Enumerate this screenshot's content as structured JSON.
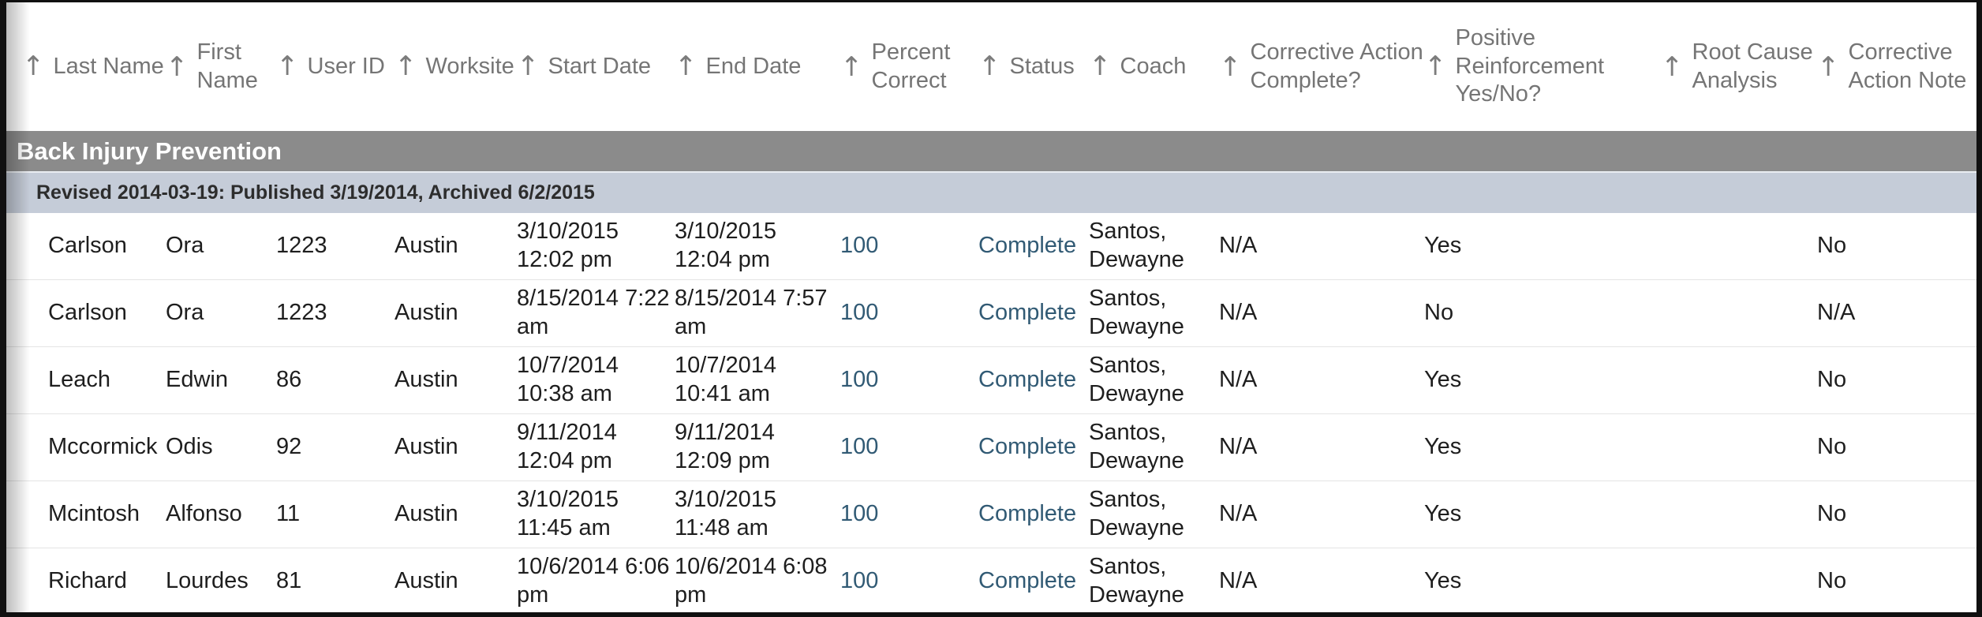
{
  "icons": {
    "sort_ascending": "↑"
  },
  "colors": {
    "group_band_bg": "#8b8b8b",
    "group_band_text": "#ffffff",
    "sub_band_bg": "#c5ccd8",
    "link_text": "#315a74",
    "header_text": "#757575",
    "body_text": "#1e1e1e"
  },
  "table": {
    "columns": [
      {
        "id": "last_name",
        "label": "Last Name"
      },
      {
        "id": "first_name",
        "label": "First\nName"
      },
      {
        "id": "user_id",
        "label": "User ID"
      },
      {
        "id": "worksite",
        "label": "Worksite"
      },
      {
        "id": "start_date",
        "label": "Start Date"
      },
      {
        "id": "end_date",
        "label": "End Date"
      },
      {
        "id": "percent_correct",
        "label": "Percent\nCorrect"
      },
      {
        "id": "status",
        "label": "Status"
      },
      {
        "id": "coach",
        "label": "Coach"
      },
      {
        "id": "corrective_action_complete",
        "label": "Corrective Action\nComplete?"
      },
      {
        "id": "positive_reinforcement",
        "label": "Positive\nReinforcement\nYes/No?"
      },
      {
        "id": "root_cause_analysis",
        "label": "Root Cause\nAnalysis"
      },
      {
        "id": "corrective_action_note",
        "label": "Corrective\nAction Note"
      }
    ],
    "link_columns": [
      "percent_correct",
      "status"
    ],
    "group": {
      "title": "Back Injury Prevention",
      "subtitle": "Revised 2014-03-19: Published 3/19/2014, Archived 6/2/2015"
    },
    "rows": [
      [
        "Carlson",
        "Ora",
        "1223",
        "Austin",
        "3/10/2015\n12:02 pm",
        "3/10/2015\n12:04 pm",
        "100",
        "Complete",
        "Santos,\nDewayne",
        "N/A",
        "Yes",
        "",
        "No"
      ],
      [
        "Carlson",
        "Ora",
        "1223",
        "Austin",
        "8/15/2014 7:22\nam",
        "8/15/2014 7:57\nam",
        "100",
        "Complete",
        "Santos,\nDewayne",
        "N/A",
        "No",
        "",
        "N/A"
      ],
      [
        "Leach",
        "Edwin",
        "86",
        "Austin",
        "10/7/2014\n10:38 am",
        "10/7/2014\n10:41 am",
        "100",
        "Complete",
        "Santos,\nDewayne",
        "N/A",
        "Yes",
        "",
        "No"
      ],
      [
        "Mccormick",
        "Odis",
        "92",
        "Austin",
        "9/11/2014\n12:04 pm",
        "9/11/2014\n12:09 pm",
        "100",
        "Complete",
        "Santos,\nDewayne",
        "N/A",
        "Yes",
        "",
        "No"
      ],
      [
        "Mcintosh",
        "Alfonso",
        "11",
        "Austin",
        "3/10/2015\n11:45 am",
        "3/10/2015\n11:48 am",
        "100",
        "Complete",
        "Santos,\nDewayne",
        "N/A",
        "Yes",
        "",
        "No"
      ],
      [
        "Richard",
        "Lourdes",
        "81",
        "Austin",
        "10/6/2014 6:06\npm",
        "10/6/2014 6:08\npm",
        "100",
        "Complete",
        "Santos,\nDewayne",
        "N/A",
        "Yes",
        "",
        "No"
      ]
    ]
  }
}
